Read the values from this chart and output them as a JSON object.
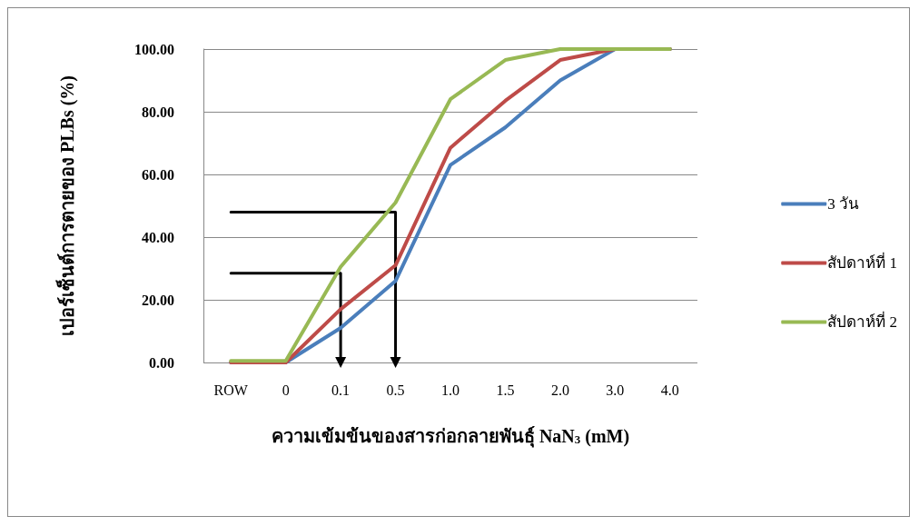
{
  "chart_data": {
    "type": "line",
    "xlabel": "ความเข้มข้นของสารก่อกลายพันธุ์ NaN$_{3}$ (mM)",
    "ylabel": "เปอร์เซ็นต์การตายของ PLBs (%)",
    "categories": [
      "ROW",
      "0",
      "0.1",
      "0.5",
      "1.0",
      "1.5",
      "2.0",
      "3.0",
      "4.0"
    ],
    "series": [
      {
        "name": "3 วัน",
        "color": "#4a7ebb",
        "values": [
          0,
          0,
          11,
          26,
          63,
          75,
          90,
          100,
          100
        ]
      },
      {
        "name": "สัปดาห์ที่ 1",
        "color": "#be4b48",
        "values": [
          0,
          0,
          17,
          31,
          68.5,
          83.5,
          96.5,
          100,
          100
        ]
      },
      {
        "name": "สัปดาห์ที่ 2",
        "color": "#98b954",
        "values": [
          0.5,
          0.5,
          30.5,
          51,
          84,
          96.5,
          100,
          100,
          100
        ]
      },
      {
        "type": "line",
        "color": "#000000",
        "x": [
          "ROW",
          "0.1",
          "0.1"
        ],
        "values": [
          28.5,
          28.5,
          0
        ]
      },
      {
        "type": "line",
        "color": "#000000",
        "x": [
          "ROW",
          "0.5",
          "0.5"
        ],
        "values": [
          48,
          48,
          0
        ]
      }
    ],
    "ylim": [
      0,
      100
    ],
    "yticks": [
      {
        "value": 0,
        "label": "0.00"
      },
      {
        "value": 20,
        "label": "20.00"
      },
      {
        "value": 40,
        "label": "40.00"
      },
      {
        "value": 60,
        "label": "60.00"
      },
      {
        "value": 80,
        "label": "80.00"
      },
      {
        "value": 100,
        "label": "100.00"
      }
    ],
    "grid": "y",
    "legend": "right",
    "marker": "none",
    "line_style": "solid"
  }
}
